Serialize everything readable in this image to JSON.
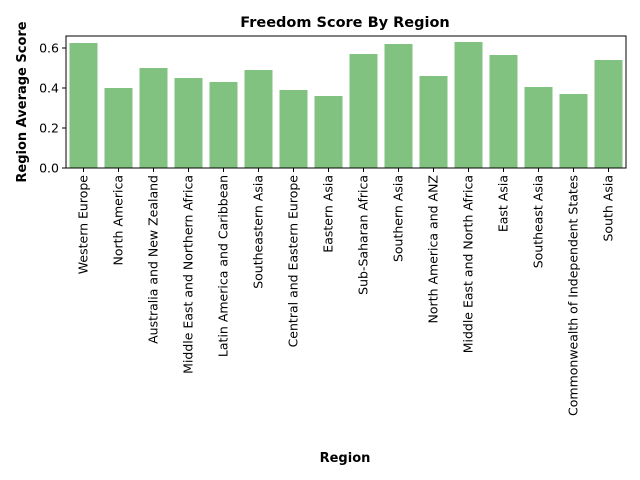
{
  "chart_data": {
    "type": "bar",
    "title": "Freedom Score By Region",
    "xlabel": "Region",
    "ylabel": "Region Average Score",
    "ylim": [
      0,
      0.66
    ],
    "yticks": [
      "0.0",
      "0.2",
      "0.4",
      "0.6"
    ],
    "bar_color": "#81c281",
    "grid": false,
    "categories": [
      "Western Europe",
      "North America",
      "Australia and New Zealand",
      "Middle East and Northern Africa",
      "Latin America and Caribbean",
      "Southeastern Asia",
      "Central and Eastern Europe",
      "Eastern Asia",
      "Sub-Saharan Africa",
      "Southern Asia",
      "North America and ANZ",
      "Middle East and North Africa",
      "East Asia",
      "Southeast Asia",
      "Commonwealth of Independent States",
      "South Asia"
    ],
    "values": [
      0.625,
      0.4,
      0.5,
      0.45,
      0.43,
      0.49,
      0.39,
      0.36,
      0.57,
      0.62,
      0.46,
      0.63,
      0.565,
      0.405,
      0.37,
      0.54
    ]
  }
}
